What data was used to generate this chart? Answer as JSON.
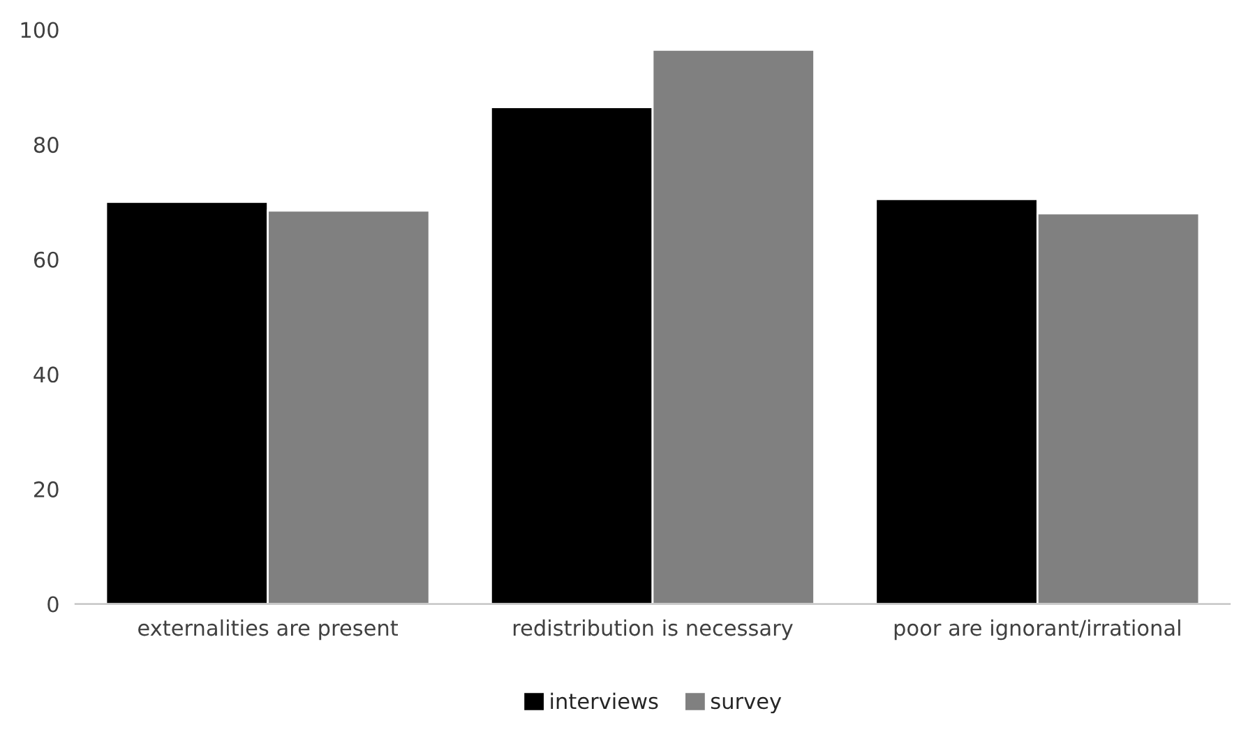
{
  "chart_data": {
    "type": "bar",
    "categories": [
      "externalities are present",
      "redistribution is necessary",
      "poor are ignorant/irrational"
    ],
    "series": [
      {
        "name": "interviews",
        "color": "#000000",
        "values": [
          70,
          86.5,
          70.5
        ]
      },
      {
        "name": "survey",
        "color": "#808080",
        "values": [
          68.5,
          96.5,
          68
        ]
      }
    ],
    "ylim": [
      0,
      100
    ],
    "yticks": [
      0,
      20,
      40,
      60,
      80,
      100
    ],
    "grid": false,
    "legend": "bottom"
  }
}
